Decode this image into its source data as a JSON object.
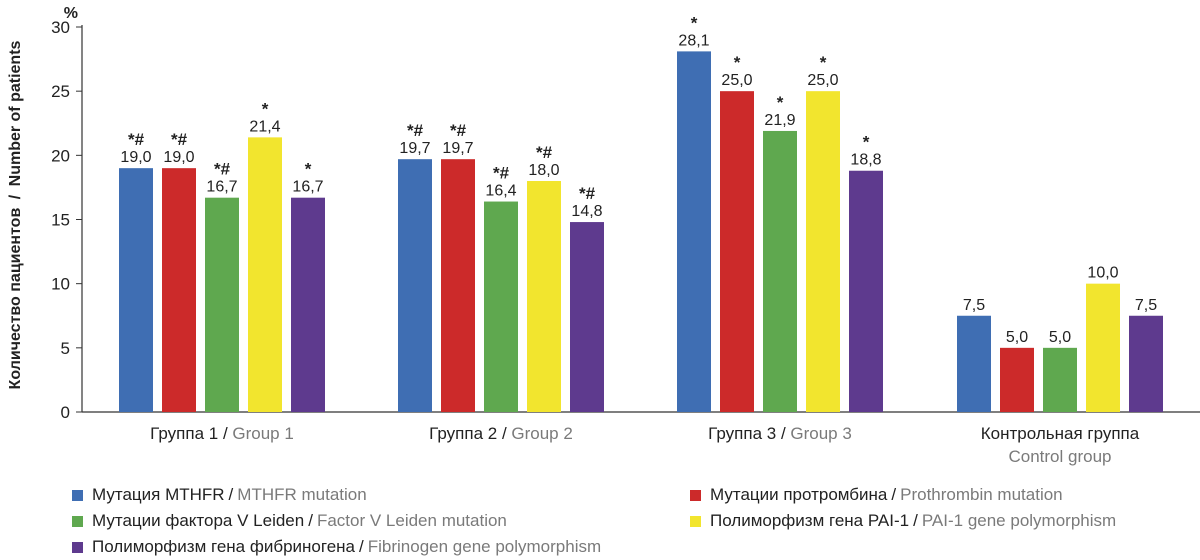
{
  "chart_data": {
    "type": "bar",
    "y_unit": "%",
    "ylabel_ru": "Количество пациентов",
    "ylabel_en": "Number of patients",
    "ylim": [
      0,
      30
    ],
    "yticks": [
      0,
      5,
      10,
      15,
      20,
      25,
      30
    ],
    "categories": [
      {
        "ru": "Группа 1",
        "en": "Group 1"
      },
      {
        "ru": "Группа 2",
        "en": "Group 2"
      },
      {
        "ru": "Группа 3",
        "en": "Group 3"
      },
      {
        "ru": "Контрольная группа",
        "en": "Control group"
      }
    ],
    "series": [
      {
        "name_ru": "Мутация MTHFR",
        "name_en": "MTHFR mutation",
        "color": "#3f6eb3",
        "values": [
          19.0,
          19.7,
          28.1,
          7.5
        ],
        "labels": [
          "19,0",
          "19,7",
          "28,1",
          "7,5"
        ],
        "marks": [
          "*#",
          "*#",
          "*",
          ""
        ]
      },
      {
        "name_ru": "Мутации протромбина",
        "name_en": "Prothrombin mutation",
        "color": "#cc2a2a",
        "values": [
          19.0,
          19.7,
          25.0,
          5.0
        ],
        "labels": [
          "19,0",
          "19,7",
          "25,0",
          "5,0"
        ],
        "marks": [
          "*#",
          "*#",
          "*",
          ""
        ]
      },
      {
        "name_ru": "Мутации фактора V Leiden",
        "name_en": "Factor V Leiden mutation",
        "color": "#5fa84f",
        "values": [
          16.7,
          16.4,
          21.9,
          5.0
        ],
        "labels": [
          "16,7",
          "16,4",
          "21,9",
          "5,0"
        ],
        "marks": [
          "*#",
          "*#",
          "*",
          ""
        ]
      },
      {
        "name_ru": "Полиморфизм гена PAI-1",
        "name_en": "PAI-1 gene polymorphism",
        "color": "#f2e52e",
        "values": [
          21.4,
          18.0,
          25.0,
          10.0
        ],
        "labels": [
          "21,4",
          "18,0",
          "25,0",
          "10,0"
        ],
        "marks": [
          "*",
          "*#",
          "*",
          ""
        ]
      },
      {
        "name_ru": "Полиморфизм гена фибриногена",
        "name_en": "Fibrinogen gene polymorphism",
        "color": "#5e3a8e",
        "values": [
          16.7,
          14.8,
          18.8,
          7.5
        ],
        "labels": [
          "16,7",
          "14,8",
          "18,8",
          "7,5"
        ],
        "marks": [
          "*",
          "*#",
          "*",
          ""
        ]
      }
    ]
  },
  "legend_separator": "/"
}
